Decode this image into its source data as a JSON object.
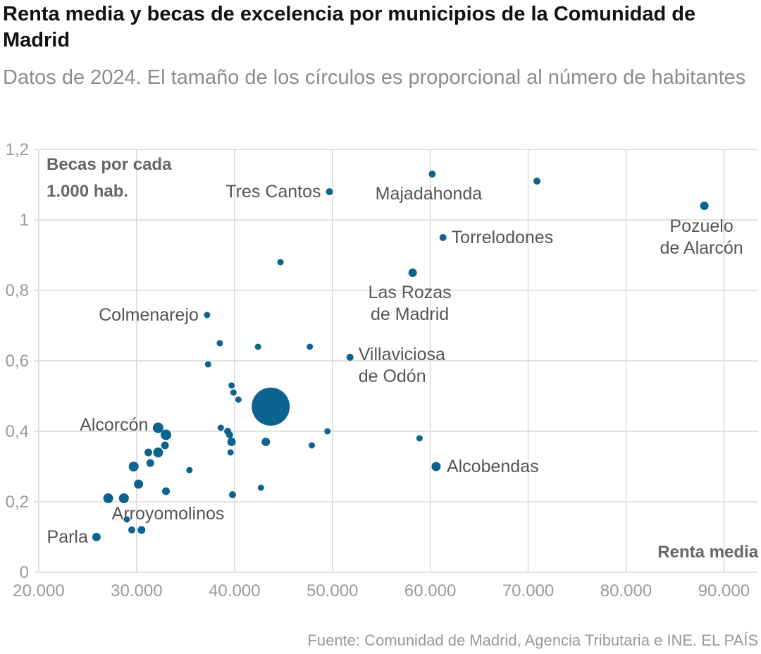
{
  "header": {
    "title": "Renta media y becas de excelencia por municipios de la Comunidad de Madrid",
    "subtitle": "Datos de 2024. El tamaño de los círculos es proporcional al número de habitantes"
  },
  "footer": {
    "source": "Fuente: Comunidad de Madrid, Agencia Tributaria e INE. EL PAÍS"
  },
  "colors": {
    "dots": "#0c6390",
    "grid": "#d9d9d9",
    "labels": "#555555",
    "title": "#111111",
    "subtitle": "#8c8c8c"
  },
  "chart_data": {
    "type": "scatter",
    "title": "Renta media y becas de excelencia por municipios de la Comunidad de Madrid",
    "subtitle": "Datos de 2024. El tamaño de los círculos es proporcional al número de habitantes",
    "xlabel": "Renta media",
    "ylabel_lines": [
      "Becas por cada",
      "1.000 hab."
    ],
    "xlim": [
      19500,
      93500
    ],
    "ylim": [
      0,
      1.2
    ],
    "x_ticks": [
      20000,
      30000,
      40000,
      50000,
      60000,
      70000,
      80000,
      90000
    ],
    "x_tick_labels": [
      "20.000",
      "30.000",
      "40.000",
      "50.000",
      "60.000",
      "70.000",
      "80.000",
      "90.000"
    ],
    "y_ticks": [
      0,
      0.2,
      0.4,
      0.6,
      0.8,
      1,
      1.2
    ],
    "y_tick_labels": [
      "0",
      "0,2",
      "0,4",
      "0,6",
      "0,8",
      "1",
      "1,2"
    ],
    "grid": true,
    "size_encoding": "number of inhabitants (relative radius)",
    "points": [
      {
        "x": 25900,
        "y": 0.1,
        "r": 6,
        "label": "Parla"
      },
      {
        "x": 27100,
        "y": 0.21,
        "r": 7
      },
      {
        "x": 28700,
        "y": 0.21,
        "r": 7
      },
      {
        "x": 29000,
        "y": 0.15,
        "r": 4.5
      },
      {
        "x": 29500,
        "y": 0.12,
        "r": 5
      },
      {
        "x": 29700,
        "y": 0.3,
        "r": 7
      },
      {
        "x": 30200,
        "y": 0.25,
        "r": 6.5
      },
      {
        "x": 30500,
        "y": 0.12,
        "r": 5.5
      },
      {
        "x": 31200,
        "y": 0.34,
        "r": 5.5
      },
      {
        "x": 31400,
        "y": 0.31,
        "r": 5.5
      },
      {
        "x": 32200,
        "y": 0.34,
        "r": 7
      },
      {
        "x": 32200,
        "y": 0.41,
        "r": 7.5,
        "label": "Alcorcón"
      },
      {
        "x": 32900,
        "y": 0.36,
        "r": 5.5
      },
      {
        "x": 33000,
        "y": 0.39,
        "r": 7.5
      },
      {
        "x": 33000,
        "y": 0.23,
        "r": 5.5,
        "label": "Arroyomolinos"
      },
      {
        "x": 35400,
        "y": 0.29,
        "r": 4.5
      },
      {
        "x": 37200,
        "y": 0.73,
        "r": 4.5,
        "label": "Colmenarejo"
      },
      {
        "x": 37300,
        "y": 0.59,
        "r": 4.5
      },
      {
        "x": 38500,
        "y": 0.65,
        "r": 4.5
      },
      {
        "x": 38600,
        "y": 0.41,
        "r": 4.5
      },
      {
        "x": 39300,
        "y": 0.4,
        "r": 5
      },
      {
        "x": 39500,
        "y": 0.39,
        "r": 5
      },
      {
        "x": 39600,
        "y": 0.34,
        "r": 4.5
      },
      {
        "x": 39700,
        "y": 0.37,
        "r": 6
      },
      {
        "x": 39700,
        "y": 0.53,
        "r": 4.5
      },
      {
        "x": 39800,
        "y": 0.22,
        "r": 5
      },
      {
        "x": 39900,
        "y": 0.51,
        "r": 4.5
      },
      {
        "x": 40400,
        "y": 0.49,
        "r": 4.5
      },
      {
        "x": 42400,
        "y": 0.64,
        "r": 4.5
      },
      {
        "x": 42700,
        "y": 0.24,
        "r": 4.5
      },
      {
        "x": 43200,
        "y": 0.37,
        "r": 6
      },
      {
        "x": 43700,
        "y": 0.47,
        "r": 27
      },
      {
        "x": 44700,
        "y": 0.88,
        "r": 4.5
      },
      {
        "x": 47700,
        "y": 0.64,
        "r": 4.5
      },
      {
        "x": 47900,
        "y": 0.36,
        "r": 4.5
      },
      {
        "x": 49500,
        "y": 0.4,
        "r": 4.5
      },
      {
        "x": 49700,
        "y": 1.08,
        "r": 5,
        "label": "Tres Cantos"
      },
      {
        "x": 51800,
        "y": 0.61,
        "r": 5,
        "label": "Villaviciosa de Odón"
      },
      {
        "x": 58200,
        "y": 0.85,
        "r": 6,
        "label": "Las Rozas de Madrid"
      },
      {
        "x": 58900,
        "y": 0.38,
        "r": 4.5
      },
      {
        "x": 60200,
        "y": 1.13,
        "r": 5,
        "label": "Majadahonda"
      },
      {
        "x": 60600,
        "y": 0.3,
        "r": 6.5,
        "label": "Alcobendas"
      },
      {
        "x": 61300,
        "y": 0.95,
        "r": 5,
        "label": "Torrelodones"
      },
      {
        "x": 70900,
        "y": 1.11,
        "r": 5
      },
      {
        "x": 88000,
        "y": 1.04,
        "r": 6,
        "label": "Pozuelo de Alarcón"
      }
    ],
    "label_lines": {
      "Parla": [
        "Parla"
      ],
      "Alcorcón": [
        "Alcorcón"
      ],
      "Arroyomolinos": [
        "Arroyomolinos"
      ],
      "Colmenarejo": [
        "Colmenarejo"
      ],
      "Tres Cantos": [
        "Tres Cantos"
      ],
      "Villaviciosa de Odón": [
        "Villaviciosa",
        "de Odón"
      ],
      "Las Rozas de Madrid": [
        "Las Rozas",
        "de Madrid"
      ],
      "Majadahonda": [
        "Majadahonda"
      ],
      "Alcobendas": [
        "Alcobendas"
      ],
      "Torrelodones": [
        "Torrelodones"
      ],
      "Pozuelo de Alarcón": [
        "Pozuelo",
        "de Alarcón"
      ]
    }
  }
}
